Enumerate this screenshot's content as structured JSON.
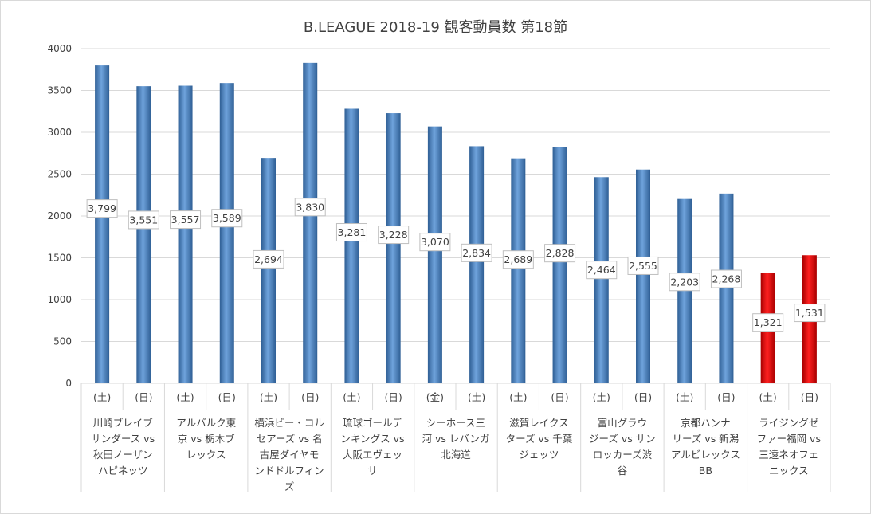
{
  "chart_data": {
    "type": "bar",
    "title": "B.LEAGUE 2018-19 観客動員数 第18節",
    "ylim": [
      0,
      4000
    ],
    "yticks": [
      0,
      500,
      1000,
      1500,
      2000,
      2500,
      3000,
      3500,
      4000
    ],
    "grid": true,
    "legend": "none",
    "colors": {
      "default": "#4f86c6",
      "highlight": "#e00000"
    },
    "categories": [
      {
        "day": "(土)",
        "value": 3799,
        "label": "3,799",
        "highlight": false
      },
      {
        "day": "(日)",
        "value": 3551,
        "label": "3,551",
        "highlight": false
      },
      {
        "day": "(土)",
        "value": 3557,
        "label": "3,557",
        "highlight": false
      },
      {
        "day": "(日)",
        "value": 3589,
        "label": "3,589",
        "highlight": false
      },
      {
        "day": "(土)",
        "value": 2694,
        "label": "2,694",
        "highlight": false
      },
      {
        "day": "(日)",
        "value": 3830,
        "label": "3,830",
        "highlight": false
      },
      {
        "day": "(土)",
        "value": 3281,
        "label": "3,281",
        "highlight": false
      },
      {
        "day": "(日)",
        "value": 3228,
        "label": "3,228",
        "highlight": false
      },
      {
        "day": "(金)",
        "value": 3070,
        "label": "3,070",
        "highlight": false
      },
      {
        "day": "(土)",
        "value": 2834,
        "label": "2,834",
        "highlight": false
      },
      {
        "day": "(土)",
        "value": 2689,
        "label": "2,689",
        "highlight": false
      },
      {
        "day": "(日)",
        "value": 2828,
        "label": "2,828",
        "highlight": false
      },
      {
        "day": "(土)",
        "value": 2464,
        "label": "2,464",
        "highlight": false
      },
      {
        "day": "(日)",
        "value": 2555,
        "label": "2,555",
        "highlight": false
      },
      {
        "day": "(土)",
        "value": 2203,
        "label": "2,203",
        "highlight": false
      },
      {
        "day": "(日)",
        "value": 2268,
        "label": "2,268",
        "highlight": false
      },
      {
        "day": "(土)",
        "value": 1321,
        "label": "1,321",
        "highlight": true
      },
      {
        "day": "(日)",
        "value": 1531,
        "label": "1,531",
        "highlight": true
      }
    ],
    "groups": [
      {
        "lines": [
          "川崎ブレイブ",
          "サンダース vs",
          "秋田ノーザン",
          "ハピネッツ"
        ]
      },
      {
        "lines": [
          "アルバルク東",
          "京 vs 栃木ブ",
          "レックス"
        ]
      },
      {
        "lines": [
          "横浜ビー・コル",
          "セアーズ vs 名",
          "古屋ダイヤモ",
          "ンドドルフィン",
          "ズ"
        ]
      },
      {
        "lines": [
          "琉球ゴールデ",
          "ンキングス vs",
          "大阪エヴェッ",
          "サ"
        ]
      },
      {
        "lines": [
          "シーホース三",
          "河 vs レバンガ",
          "北海道"
        ]
      },
      {
        "lines": [
          "滋賀レイクス",
          "ターズ vs 千葉",
          "ジェッツ"
        ]
      },
      {
        "lines": [
          "富山グラウ",
          "ジーズ vs サン",
          "ロッカーズ渋",
          "谷"
        ]
      },
      {
        "lines": [
          "京都ハンナ",
          "リーズ vs 新潟",
          "アルビレックス",
          "BB"
        ]
      },
      {
        "lines": [
          "ライジングゼ",
          "ファー福岡 vs",
          "三遠ネオフェ",
          "ニックス"
        ]
      }
    ]
  }
}
